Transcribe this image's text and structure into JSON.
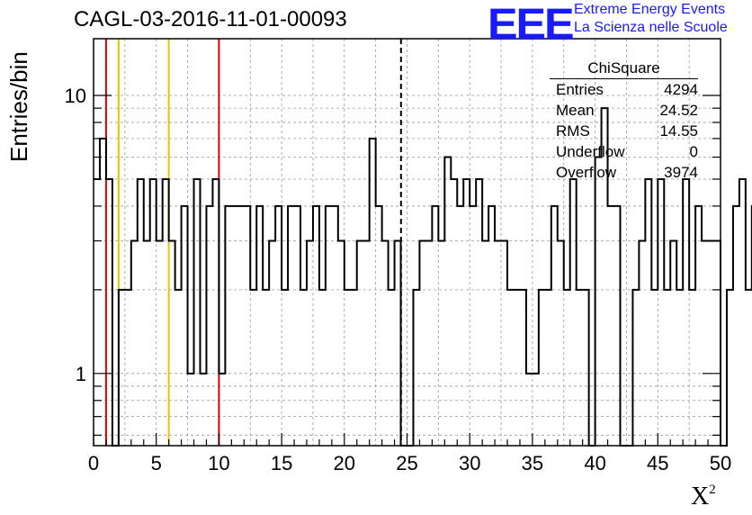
{
  "header": {
    "title": "CAGL-03-2016-11-01-00093",
    "logo_text": "EEE",
    "logo_line1": "Extreme Energy Events",
    "logo_line2": "La Scienza nelle Scuole"
  },
  "stats": {
    "title": "ChiSquare",
    "rows": [
      {
        "label": "Entries",
        "value": "4294"
      },
      {
        "label": "Mean",
        "value": "24.52"
      },
      {
        "label": "RMS",
        "value": "14.55"
      },
      {
        "label": "Underflow",
        "value": "0"
      },
      {
        "label": "Overflow",
        "value": "3974"
      }
    ]
  },
  "chart_data": {
    "type": "histogram",
    "title": "CAGL-03-2016-11-01-00093",
    "xlabel": "X",
    "xlabel_superscript": "2",
    "ylabel": "Entries/bin",
    "xlim": [
      0,
      50
    ],
    "ylim": [
      0.55,
      16
    ],
    "yscale": "log",
    "grid": true,
    "bin_width": 0.5,
    "x_ticks": [
      "0",
      "5",
      "10",
      "15",
      "20",
      "25",
      "30",
      "35",
      "40",
      "45",
      "50"
    ],
    "y_ticks": [
      "1",
      "10"
    ],
    "values": [
      5,
      7,
      5,
      0.5,
      2,
      2,
      3,
      5,
      3,
      5,
      3,
      5,
      3,
      2,
      4,
      1,
      5,
      1,
      4,
      5,
      1,
      4,
      4,
      4,
      4,
      2,
      4,
      2,
      3,
      4,
      2,
      4,
      4,
      2,
      3,
      4,
      2,
      4,
      4,
      3,
      2,
      2,
      3,
      3,
      7,
      4,
      3,
      2,
      3,
      0.5,
      0.5,
      2,
      3,
      3,
      4,
      3,
      6,
      5,
      4,
      5,
      4,
      5,
      3,
      4,
      3,
      3,
      2,
      2,
      2,
      1,
      1,
      2,
      2,
      4,
      3,
      2,
      5,
      2,
      2,
      0.5,
      6,
      9,
      4,
      4,
      0.5,
      0.5,
      2,
      3,
      5,
      2,
      5,
      2,
      3,
      2,
      5,
      2,
      4,
      3,
      3,
      3,
      0.5,
      2,
      4,
      5,
      2,
      4,
      3,
      4,
      5,
      4,
      3,
      5,
      1,
      2,
      2,
      3,
      3,
      4,
      4,
      1,
      5,
      7,
      5,
      3,
      4,
      4,
      4,
      3
    ],
    "reference_lines": [
      {
        "x": 1,
        "color": "#e00000",
        "style": "solid"
      },
      {
        "x": 2,
        "color": "#f0c000",
        "style": "solid"
      },
      {
        "x": 6,
        "color": "#f0c000",
        "style": "solid"
      },
      {
        "x": 10,
        "color": "#e00000",
        "style": "solid"
      },
      {
        "x": 24.52,
        "color": "#000000",
        "style": "dashed"
      }
    ]
  }
}
